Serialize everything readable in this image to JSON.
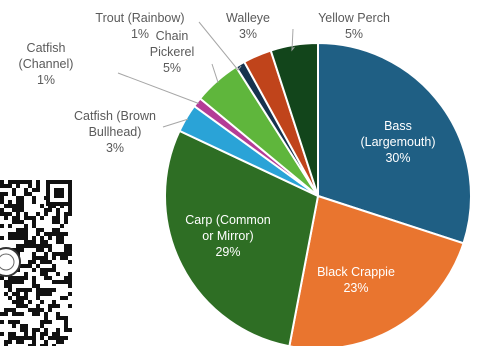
{
  "chart_data": {
    "type": "pie",
    "title": "",
    "slices": [
      {
        "name": "Bass (Largemouth)",
        "label_lines": [
          "Bass",
          "(Largemouth)"
        ],
        "pct_label": "30%",
        "value": 30,
        "color": "#1f5f84",
        "label_color": "#ffffff"
      },
      {
        "name": "Black Crappie",
        "label_lines": [
          "Black Crappie"
        ],
        "pct_label": "23%",
        "value": 23,
        "color": "#e9752f",
        "label_color": "#ffffff"
      },
      {
        "name": "Carp (Common or Mirror)",
        "label_lines": [
          "Carp (Common",
          "or Mirror)"
        ],
        "pct_label": "29%",
        "value": 29,
        "color": "#2e6e24",
        "label_color": "#ffffff"
      },
      {
        "name": "Catfish (Brown Bullhead)",
        "label_lines": [
          "Catfish (Brown",
          "Bullhead)"
        ],
        "pct_label": "3%",
        "value": 3,
        "color": "#2aa3d7",
        "label_color": "#5a5a5a"
      },
      {
        "name": "Catfish (Channel)",
        "label_lines": [
          "Catfish",
          "(Channel)"
        ],
        "pct_label": "1%",
        "value": 1,
        "color": "#b43c96",
        "label_color": "#5a5a5a"
      },
      {
        "name": "Chain Pickerel",
        "label_lines": [
          "Chain",
          "Pickerel"
        ],
        "pct_label": "5%",
        "value": 5,
        "color": "#5fb63c",
        "label_color": "#5a5a5a"
      },
      {
        "name": "Trout (Rainbow)",
        "label_lines": [
          "Trout (Rainbow)"
        ],
        "pct_label": "1%",
        "value": 1,
        "color": "#16334f",
        "label_color": "#5a5a5a"
      },
      {
        "name": "Walleye",
        "label_lines": [
          "Walleye"
        ],
        "pct_label": "3%",
        "value": 3,
        "color": "#c0441b",
        "label_color": "#5a5a5a"
      },
      {
        "name": "Yellow Perch",
        "label_lines": [
          "Yellow Perch"
        ],
        "pct_label": "5%",
        "value": 5,
        "color": "#12451b",
        "label_color": "#5a5a5a"
      }
    ]
  }
}
